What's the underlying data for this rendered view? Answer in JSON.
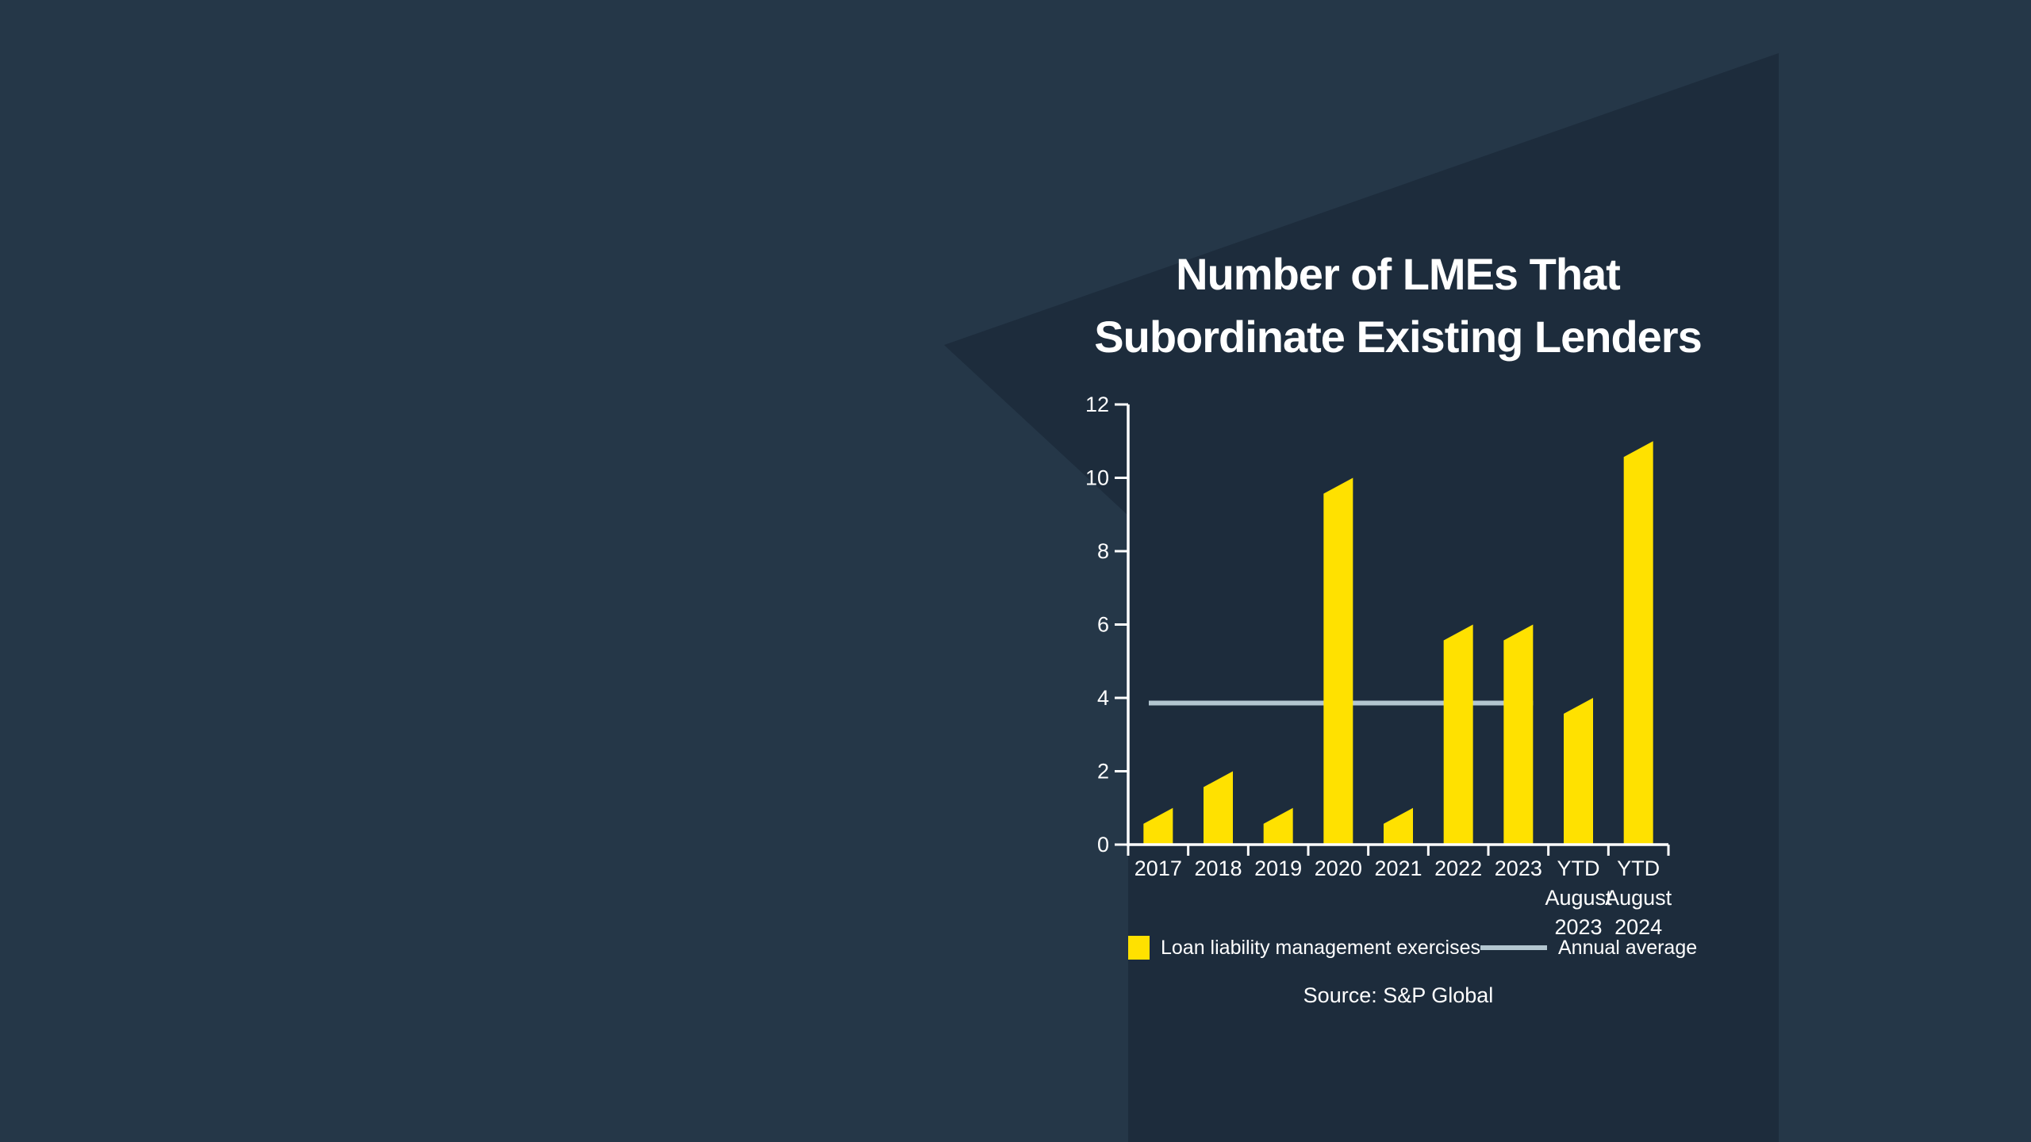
{
  "page": {
    "background_color": "#253748",
    "panel_color": "#1d2c3c"
  },
  "title": {
    "line1": "Number of LMEs That",
    "line2": "Subordinate Existing Lenders"
  },
  "legend": {
    "bar_label": "Loan liability management exercises",
    "line_label": "Annual average"
  },
  "source": {
    "text": "Source: S&P Global"
  },
  "chart_data": {
    "type": "bar",
    "title": "Number of LMEs That Subordinate Existing Lenders",
    "categories": [
      "2017",
      "2018",
      "2019",
      "2020",
      "2021",
      "2022",
      "2023",
      "YTD August 2023",
      "YTD August 2024"
    ],
    "category_display_lines": [
      [
        "2017"
      ],
      [
        "2018"
      ],
      [
        "2019"
      ],
      [
        "2020"
      ],
      [
        "2021"
      ],
      [
        "2022"
      ],
      [
        "2023"
      ],
      [
        "YTD",
        "August",
        "2023"
      ],
      [
        "YTD",
        "August",
        "2024"
      ]
    ],
    "series": [
      {
        "name": "Loan liability management exercises",
        "values": [
          1,
          2,
          1,
          10,
          1,
          6,
          6,
          4,
          11
        ]
      }
    ],
    "average_line": {
      "label": "Annual average",
      "value": 3.86,
      "applies_to_categories": [
        "2017",
        "2018",
        "2019",
        "2020",
        "2021",
        "2022",
        "2023"
      ]
    },
    "ylim": [
      0,
      12
    ],
    "yticks": [
      0,
      2,
      4,
      6,
      8,
      10,
      12
    ],
    "grid": "off",
    "legend_position": "bottom",
    "bar_color": "#FFE100",
    "average_line_color": "#B3C6D0",
    "axis_color": "#FFFFFF",
    "label_color": "#FFFFFF"
  }
}
